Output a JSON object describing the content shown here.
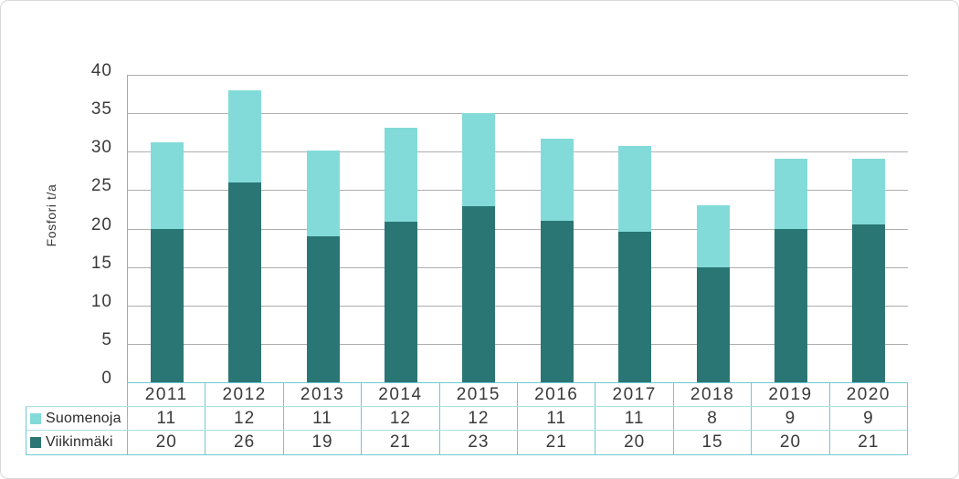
{
  "chart_data": {
    "type": "bar",
    "stacked": true,
    "title": "",
    "xlabel": "",
    "ylabel": "Fosfori t/a",
    "ylim": [
      0,
      40
    ],
    "ytick_step": 5,
    "yticks": [
      0,
      5,
      10,
      15,
      20,
      25,
      30,
      35,
      40
    ],
    "grid": true,
    "legend_position": "left-of-data-table",
    "data_table_shown": true,
    "categories": [
      "2011",
      "2012",
      "2013",
      "2014",
      "2015",
      "2016",
      "2017",
      "2018",
      "2019",
      "2020"
    ],
    "series": [
      {
        "name": "Suomenoja",
        "color": "#82dbd9",
        "values": [
          11,
          12,
          11,
          12,
          12,
          11,
          11,
          8,
          9,
          9
        ],
        "visual_values": [
          11.2,
          12.0,
          11.1,
          12.2,
          12.1,
          10.7,
          11.1,
          8.1,
          9.2,
          8.6
        ]
      },
      {
        "name": "Viikinmäki",
        "color": "#2a7674",
        "values": [
          20,
          26,
          19,
          21,
          23,
          21,
          20,
          15,
          20,
          21
        ],
        "visual_values": [
          20.0,
          26.0,
          19.0,
          20.9,
          22.9,
          21.0,
          19.6,
          14.9,
          19.9,
          20.5
        ]
      }
    ],
    "stack_order_bottom_to_top": [
      "Viikinmäki",
      "Suomenoja"
    ]
  },
  "colors": {
    "grid": "#aeaeae",
    "axis": "#a6a6a6",
    "table_border": "#6dc9d2",
    "table_inner_border": "#abe0e5",
    "text": "#3a3a3a",
    "card_border": "#d9d9d9",
    "background": "#ffffff"
  }
}
